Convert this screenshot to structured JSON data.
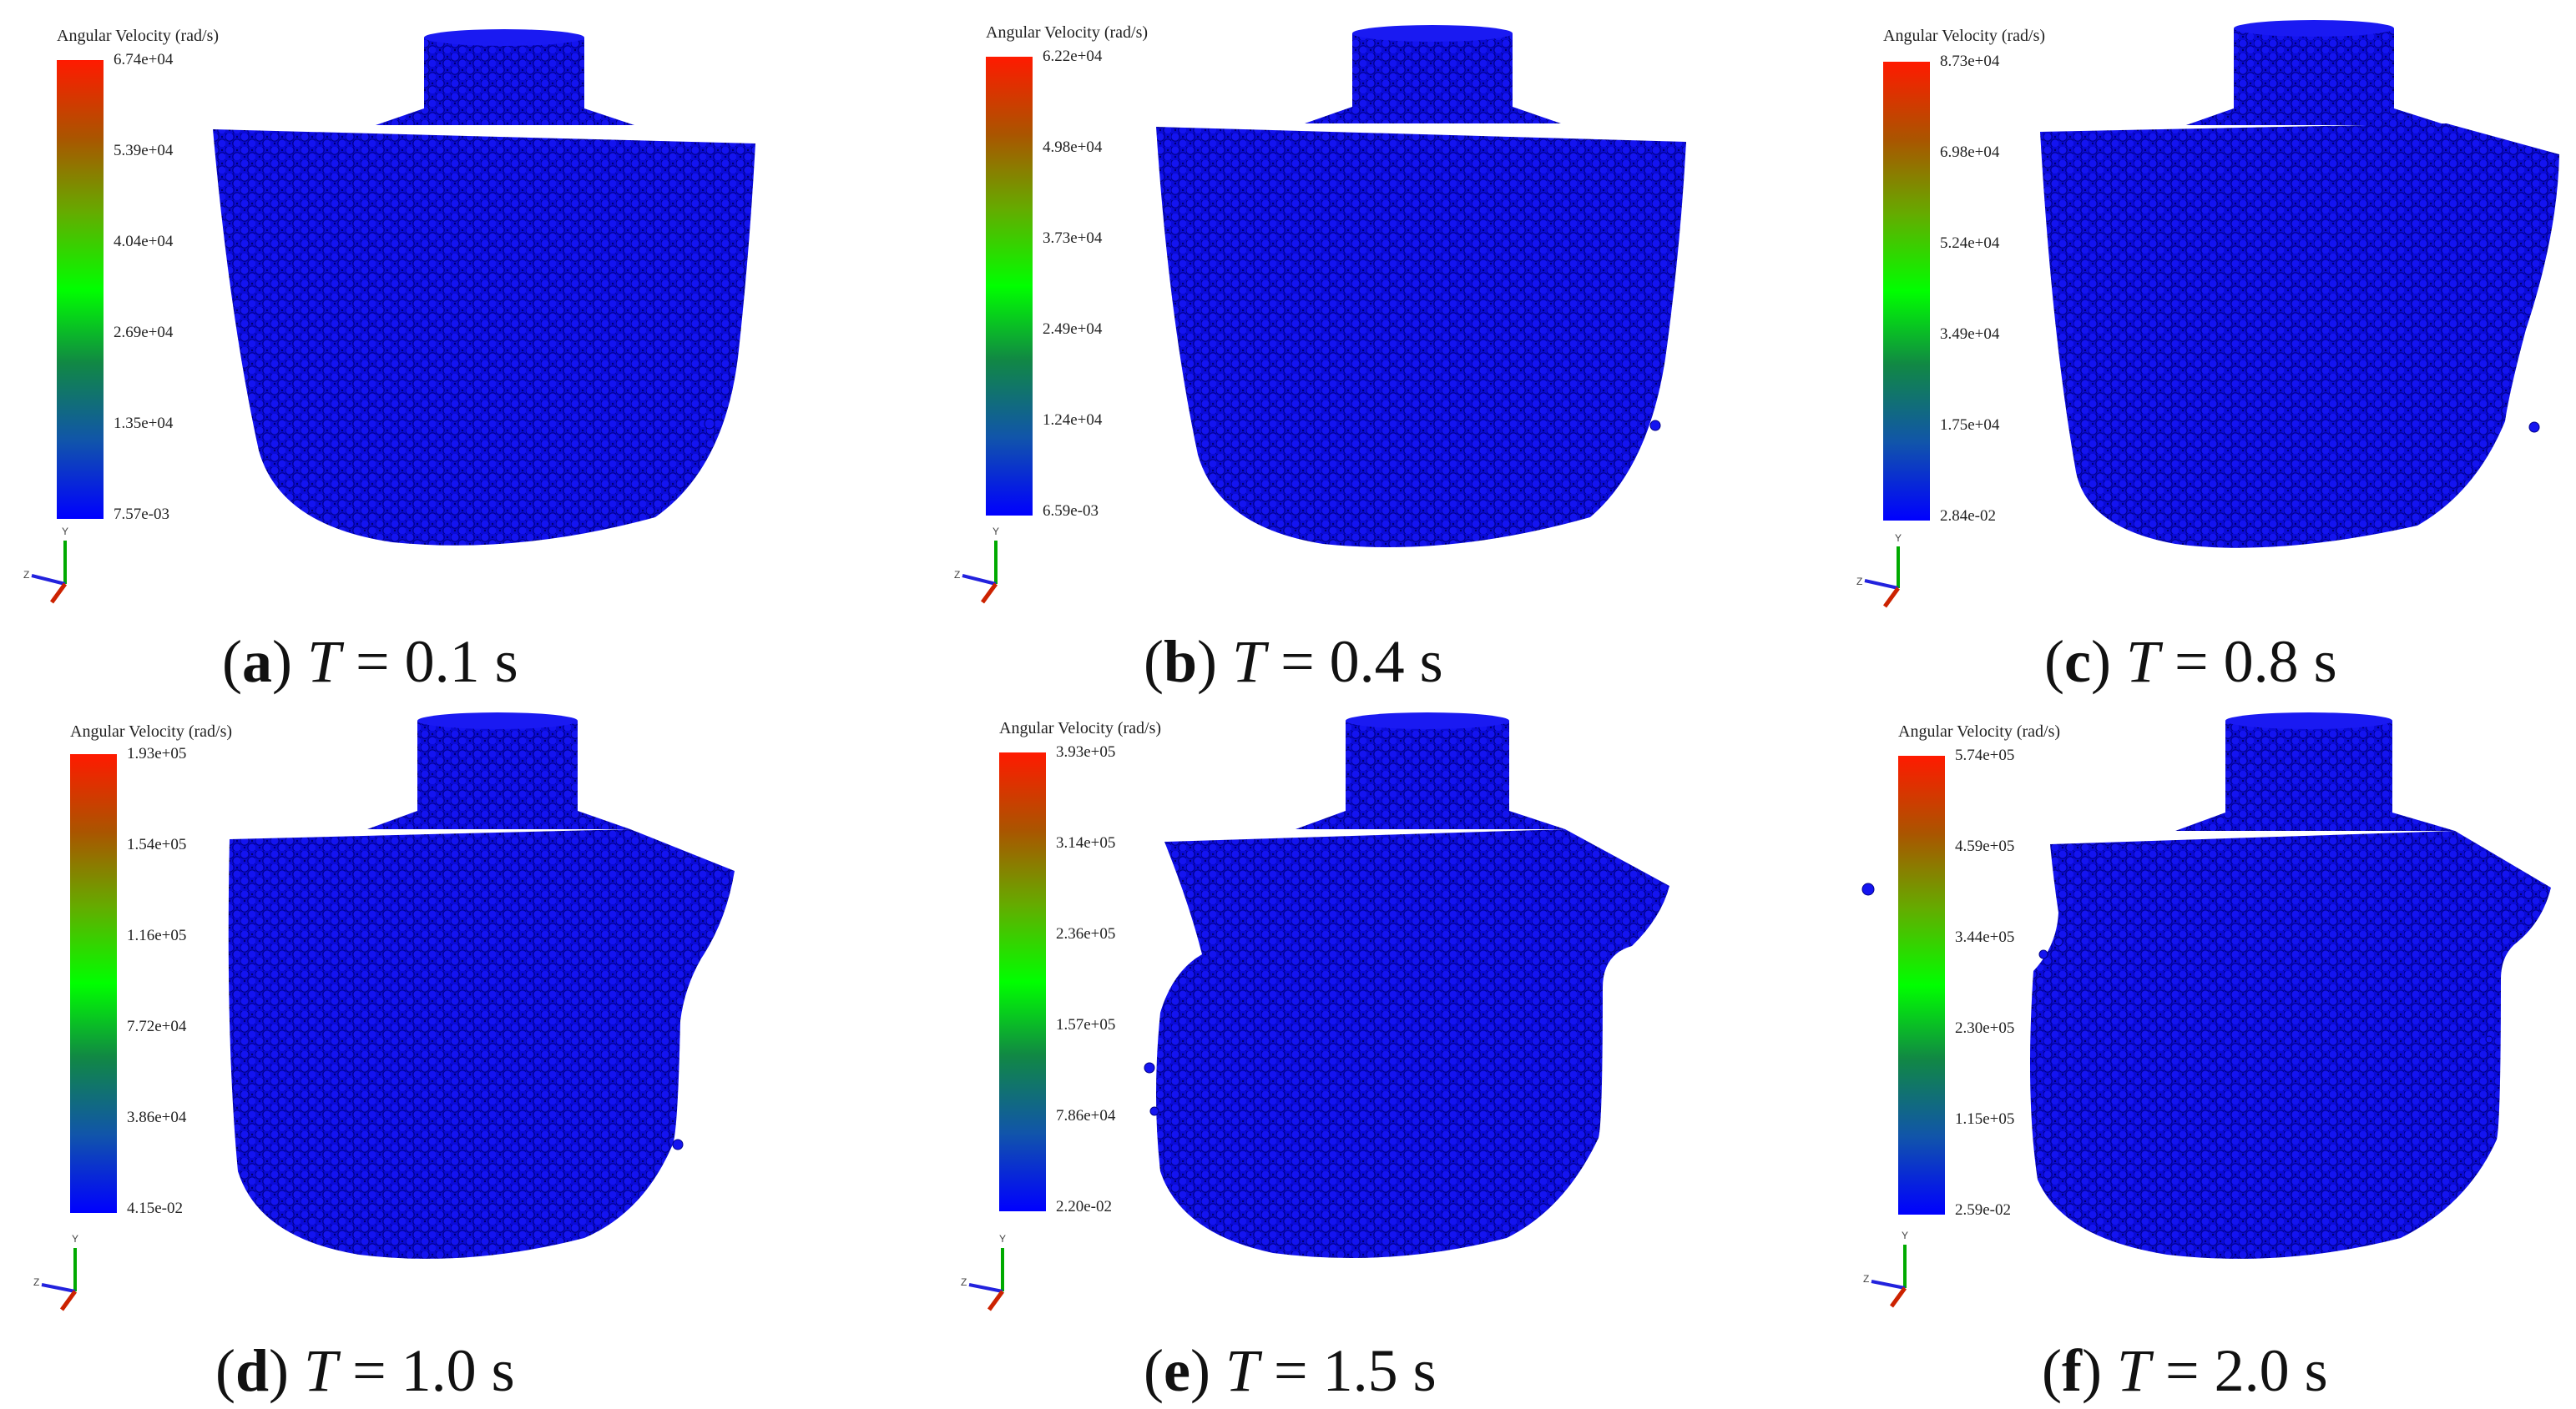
{
  "legend_title": "Angular Velocity (rad/s)",
  "axis_labels": {
    "y": "Y",
    "z": "Z"
  },
  "colors": {
    "particle_blue": "#0a0ad8",
    "particle_dark": "#000090",
    "bar_top": "#ff1a00",
    "bar_mid": "#00ff00",
    "bar_bottom": "#0000ff"
  },
  "panels": [
    {
      "letter": "a",
      "time": "0.1",
      "ticks": [
        "6.74e+04",
        "5.39e+04",
        "4.04e+04",
        "2.69e+04",
        "1.35e+04",
        "7.57e-03"
      ]
    },
    {
      "letter": "b",
      "time": "0.4",
      "ticks": [
        "6.22e+04",
        "4.98e+04",
        "3.73e+04",
        "2.49e+04",
        "1.24e+04",
        "6.59e-03"
      ]
    },
    {
      "letter": "c",
      "time": "0.8",
      "ticks": [
        "8.73e+04",
        "6.98e+04",
        "5.24e+04",
        "3.49e+04",
        "1.75e+04",
        "2.84e-02"
      ]
    },
    {
      "letter": "d",
      "time": "1.0",
      "ticks": [
        "1.93e+05",
        "1.54e+05",
        "1.16e+05",
        "7.72e+04",
        "3.86e+04",
        "4.15e-02"
      ]
    },
    {
      "letter": "e",
      "time": "1.5",
      "ticks": [
        "3.93e+05",
        "3.14e+05",
        "2.36e+05",
        "1.57e+05",
        "7.86e+04",
        "2.20e-02"
      ]
    },
    {
      "letter": "f",
      "time": "2.0",
      "ticks": [
        "5.74e+05",
        "4.59e+05",
        "3.44e+05",
        "2.30e+05",
        "1.15e+05",
        "2.59e-02"
      ]
    }
  ],
  "caption_parts": {
    "T": "T",
    "equals": " = ",
    "unit": " s"
  }
}
